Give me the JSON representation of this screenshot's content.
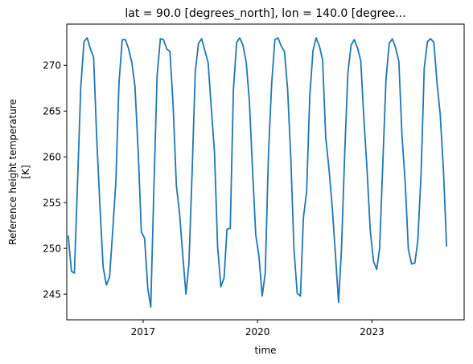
{
  "chart_data": {
    "type": "line",
    "title": "lat = 90.0 [degrees_north], lon = 140.0 [degree...",
    "xlabel": "time",
    "ylabel_lines": [
      "Reference height temperature",
      "[K]"
    ],
    "x_ticks": [
      "2017",
      "2020",
      "2023"
    ],
    "y_ticks": [
      "245",
      "250",
      "255",
      "260",
      "265",
      "270"
    ],
    "ylim": [
      242.2,
      274.5
    ],
    "xlim": [
      "2015-01-01",
      "2025-06-01"
    ],
    "grid": false,
    "series": [
      {
        "color": "#1f77b4",
        "x": [
          "2015-01-15",
          "2015-02-15",
          "2015-03-15",
          "2015-04-15",
          "2015-05-15",
          "2015-06-15",
          "2015-07-15",
          "2015-08-15",
          "2015-09-15",
          "2015-10-15",
          "2015-11-15",
          "2015-12-15",
          "2016-01-15",
          "2016-02-15",
          "2016-03-15",
          "2016-04-15",
          "2016-05-15",
          "2016-06-15",
          "2016-07-15",
          "2016-08-15",
          "2016-09-15",
          "2016-10-15",
          "2016-11-15",
          "2016-12-15",
          "2017-01-15",
          "2017-02-15",
          "2017-03-15",
          "2017-04-15",
          "2017-05-15",
          "2017-06-15",
          "2017-07-15",
          "2017-08-15",
          "2017-09-15",
          "2017-10-15",
          "2017-11-15",
          "2017-12-15",
          "2018-01-15",
          "2018-02-15",
          "2018-03-15",
          "2018-04-15",
          "2018-05-15",
          "2018-06-15",
          "2018-07-15",
          "2018-08-15",
          "2018-09-15",
          "2018-10-15",
          "2018-11-15",
          "2018-12-15",
          "2019-01-15",
          "2019-02-15",
          "2019-03-15",
          "2019-04-15",
          "2019-05-15",
          "2019-06-15",
          "2019-07-15",
          "2019-08-15",
          "2019-09-15",
          "2019-10-15",
          "2019-11-15",
          "2019-12-15",
          "2020-01-15",
          "2020-02-15",
          "2020-03-15",
          "2020-04-15",
          "2020-05-15",
          "2020-06-15",
          "2020-07-15",
          "2020-08-15",
          "2020-09-15",
          "2020-10-15",
          "2020-11-15",
          "2020-12-15",
          "2021-01-15",
          "2021-02-15",
          "2021-03-15",
          "2021-04-15",
          "2021-05-15",
          "2021-06-15",
          "2021-07-15",
          "2021-08-15",
          "2021-09-15",
          "2021-10-15",
          "2021-11-15",
          "2021-12-15",
          "2022-01-15",
          "2022-02-15",
          "2022-03-15",
          "2022-04-15",
          "2022-05-15",
          "2022-06-15",
          "2022-07-15",
          "2022-08-15",
          "2022-09-15",
          "2022-10-15",
          "2022-11-15",
          "2022-12-15",
          "2023-01-15",
          "2023-02-15",
          "2023-03-15",
          "2023-04-15",
          "2023-05-15",
          "2023-06-15",
          "2023-07-15",
          "2023-08-15",
          "2023-09-15",
          "2023-10-15",
          "2023-11-15",
          "2023-12-15",
          "2024-01-15",
          "2024-02-15",
          "2024-03-15",
          "2024-04-15",
          "2024-05-15",
          "2024-06-15",
          "2024-07-15",
          "2024-08-15",
          "2024-09-15",
          "2024-10-15",
          "2024-11-15",
          "2024-12-15"
        ],
        "y": [
          251.4,
          247.5,
          247.3,
          257.5,
          267.6,
          272.6,
          273.0,
          271.8,
          270.9,
          262.0,
          254.5,
          248.0,
          246.0,
          246.9,
          251.8,
          257.3,
          268.1,
          272.8,
          272.8,
          271.8,
          270.3,
          267.7,
          260.5,
          251.8,
          251.1,
          245.6,
          243.6,
          257.0,
          268.9,
          272.9,
          272.8,
          271.8,
          271.5,
          265.6,
          256.9,
          253.9,
          249.3,
          245.0,
          248.3,
          258.3,
          269.3,
          272.4,
          272.9,
          271.6,
          270.3,
          265.4,
          260.5,
          250.2,
          245.8,
          246.8,
          252.1,
          252.2,
          267.3,
          272.5,
          273.0,
          272.2,
          270.3,
          266.1,
          258.4,
          251.5,
          249.1,
          244.8,
          247.3,
          260.4,
          267.9,
          272.8,
          273.0,
          272.1,
          271.5,
          267.4,
          259.8,
          249.9,
          245.1,
          244.8,
          253.3,
          256.2,
          266.6,
          271.6,
          273.0,
          272.1,
          270.6,
          262.1,
          258.7,
          254.7,
          249.5,
          244.1,
          250.0,
          260.5,
          269.2,
          272.2,
          272.8,
          271.9,
          270.5,
          264.2,
          258.5,
          252.0,
          248.6,
          247.7,
          250.0,
          259.5,
          268.5,
          272.4,
          272.9,
          271.9,
          270.4,
          262.3,
          257.1,
          249.9,
          248.3,
          248.4,
          250.9,
          258.3,
          269.7,
          272.6,
          272.9,
          272.5,
          268.0,
          264.6,
          258.5,
          250.2
        ]
      }
    ]
  }
}
